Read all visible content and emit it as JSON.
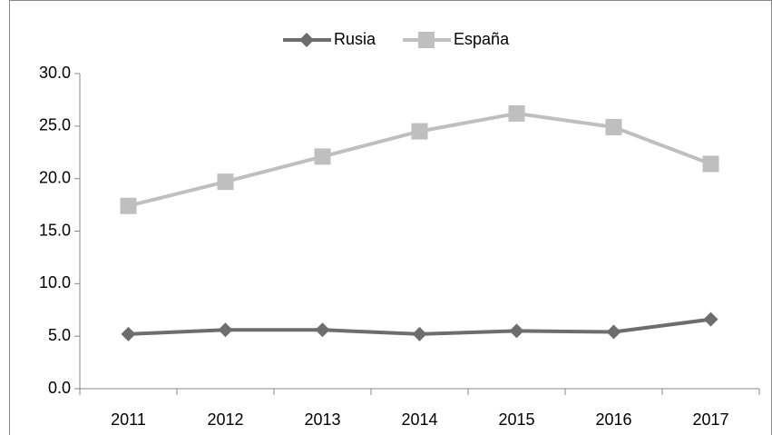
{
  "chart_data": {
    "type": "line",
    "categories": [
      "2011",
      "2012",
      "2013",
      "2014",
      "2015",
      "2016",
      "2017"
    ],
    "series": [
      {
        "name": "Rusia",
        "color": "#6d6d6d",
        "marker": "diamond",
        "values": [
          5.2,
          5.6,
          5.6,
          5.2,
          5.5,
          5.4,
          6.6
        ]
      },
      {
        "name": "España",
        "color": "#bfbfbf",
        "marker": "square",
        "values": [
          17.4,
          19.7,
          22.1,
          24.5,
          26.2,
          24.9,
          21.4
        ]
      }
    ],
    "ylim": [
      0,
      30
    ],
    "yticks": [
      {
        "value": 0,
        "label": "0.0"
      },
      {
        "value": 5,
        "label": "5.0"
      },
      {
        "value": 10,
        "label": "10.0"
      },
      {
        "value": 15,
        "label": "15.0"
      },
      {
        "value": 20,
        "label": "20.0"
      },
      {
        "value": 25,
        "label": "25.0"
      },
      {
        "value": 30,
        "label": "30.0"
      }
    ],
    "grid": false,
    "legend": "top"
  }
}
